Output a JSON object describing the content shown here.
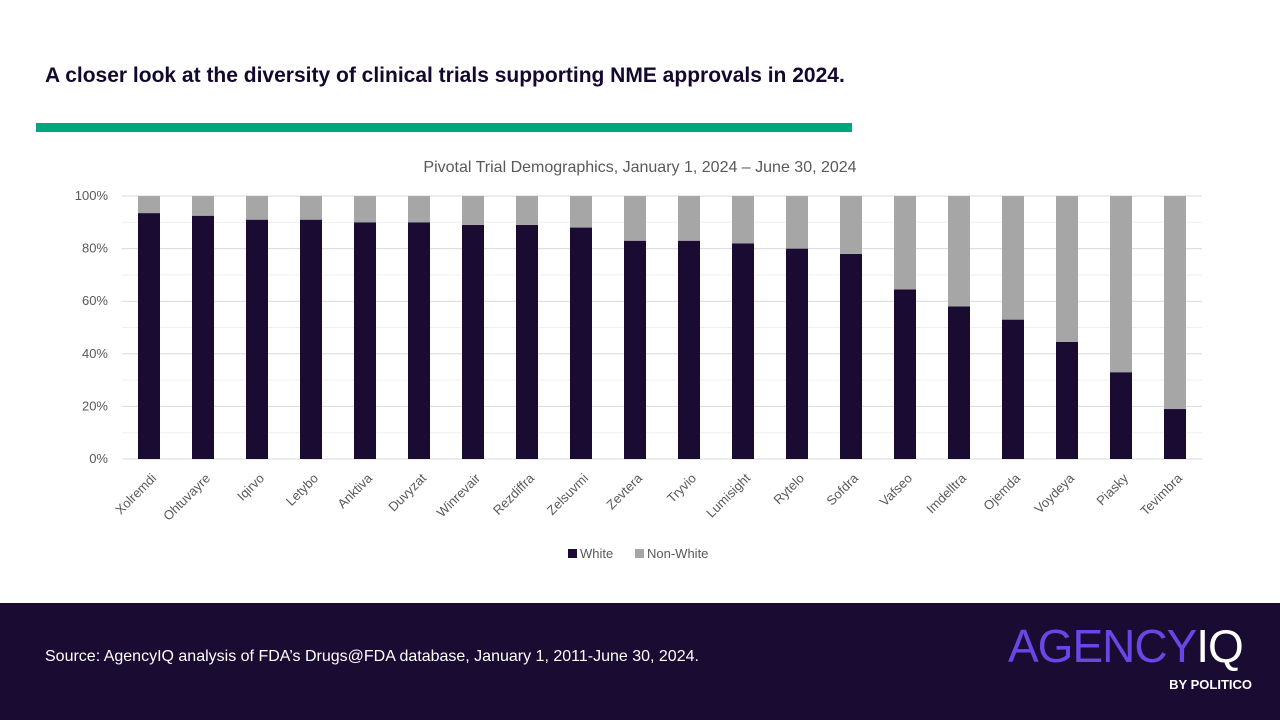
{
  "headline": "A closer look at the diversity of clinical trials supporting NME approvals in 2024.",
  "colors": {
    "accent": "#00a67e",
    "white_series": "#1a0b33",
    "nonwhite_series": "#a6a6a6",
    "footer_bg": "#1a0b33"
  },
  "chart_data": {
    "type": "bar",
    "stacked": true,
    "title": "Pivotal Trial Demographics, January 1, 2024 – June 30, 2024",
    "categories": [
      "Xolremdi",
      "Ohtuvayre",
      "Iqirvo",
      "Letybo",
      "Anktiva",
      "Duvyzat",
      "Winrevair",
      "Rezdiffra",
      "Zelsuvmi",
      "Zevtera",
      "Tryvio",
      "Lumisight",
      "Rytelo",
      "Sofdra",
      "Vafseo",
      "Imdelltra",
      "Ojemda",
      "Voydeya",
      "Piasky",
      "Tevimbra"
    ],
    "series": [
      {
        "name": "White",
        "values": [
          93.5,
          92.5,
          91,
          91,
          90,
          90,
          89,
          89,
          88,
          83,
          83,
          82,
          80,
          78,
          64.5,
          58,
          53,
          44.5,
          33,
          19
        ]
      },
      {
        "name": "Non-White",
        "values": [
          6.5,
          7.5,
          9,
          9,
          10,
          10,
          11,
          11,
          12,
          17,
          17,
          18,
          20,
          22,
          35.5,
          42,
          47,
          55.5,
          67,
          81
        ]
      }
    ],
    "ylim": [
      0,
      100
    ],
    "y_ticks": [
      "0%",
      "20%",
      "40%",
      "60%",
      "80%",
      "100%"
    ],
    "xlabel": "",
    "ylabel": "",
    "legend": [
      "White",
      "Non-White"
    ]
  },
  "footer": {
    "source": "Source: AgencyIQ analysis of FDA’s Drugs@FDA database, January 1, 2011-June 30, 2024.",
    "logo_agency": "AGENCY",
    "logo_iq": "IQ",
    "logo_sub": "BY POLITICO"
  }
}
